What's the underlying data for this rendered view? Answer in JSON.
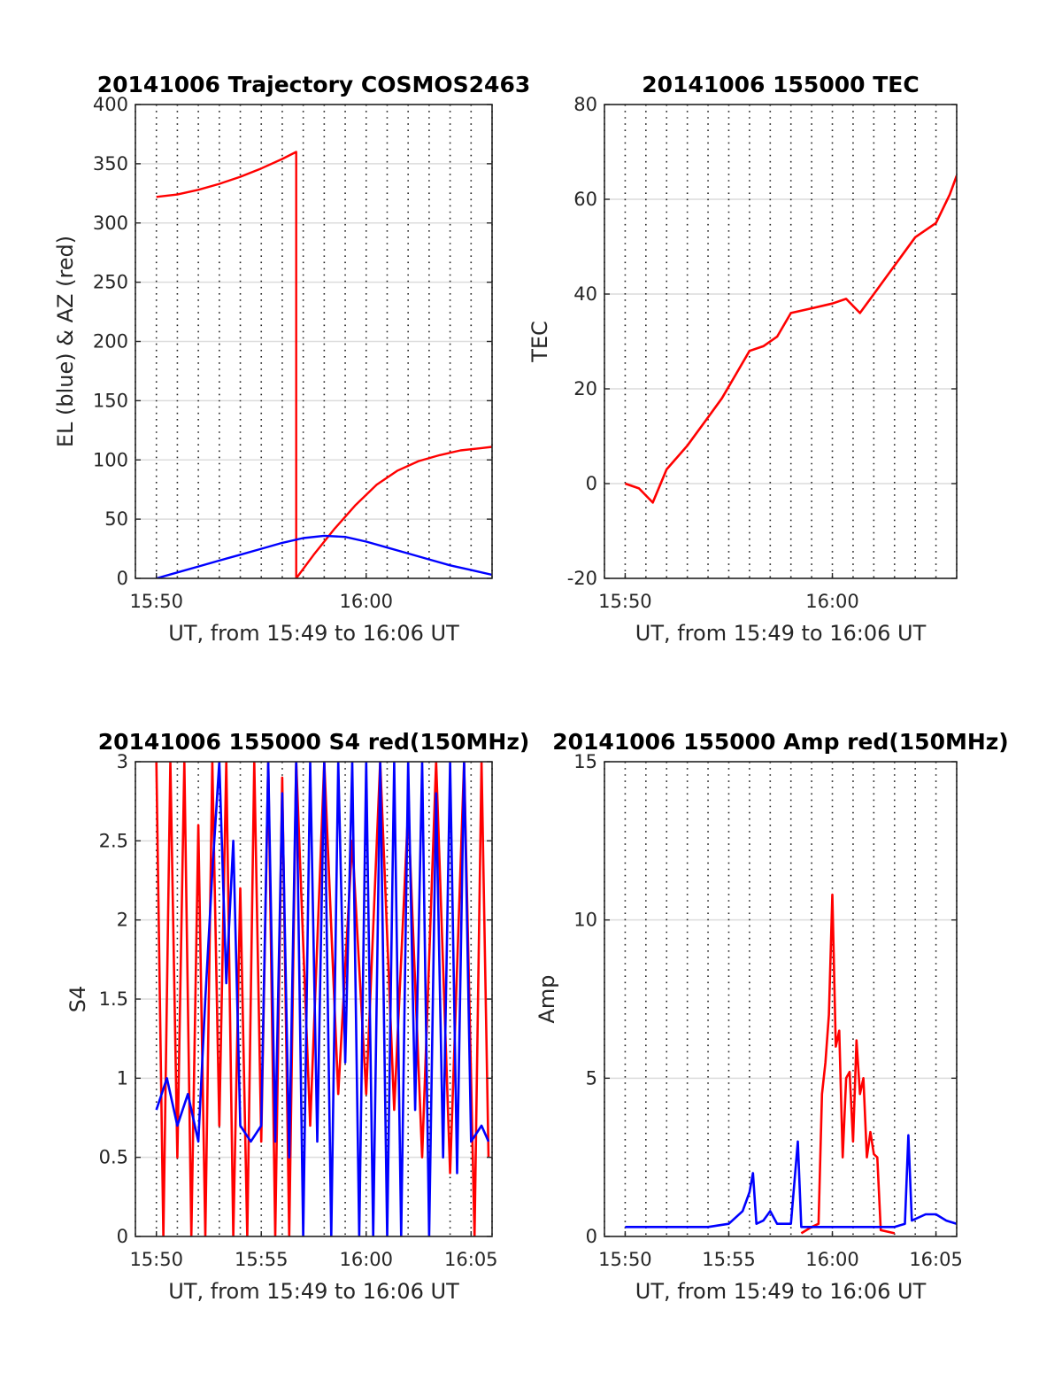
{
  "chart_data": [
    {
      "id": "traj",
      "type": "line",
      "title": "20141006 Trajectory COSMOS2463",
      "xlabel": "UT, from 15:49 to 16:06 UT",
      "ylabel": "EL (blue) & AZ (red)",
      "xlim": [
        "15:49",
        "16:06"
      ],
      "ylim": [
        0,
        400
      ],
      "xticks": [
        "15:50",
        "16:00"
      ],
      "yticks": [
        0,
        50,
        100,
        150,
        200,
        250,
        300,
        350,
        400
      ],
      "grid": true,
      "series": [
        {
          "color": "#ff0000",
          "points": [
            [
              "15:50:00",
              322
            ],
            [
              "15:51:00",
              324
            ],
            [
              "15:52:00",
              328
            ],
            [
              "15:53:00",
              333
            ],
            [
              "15:54:00",
              339
            ],
            [
              "15:55:00",
              346
            ],
            [
              "15:56:00",
              354
            ],
            [
              "15:56:40",
              360
            ],
            [
              "15:56:40",
              0
            ],
            [
              "15:57:30",
              20
            ],
            [
              "15:58:30",
              42
            ],
            [
              "15:59:30",
              62
            ],
            [
              "16:00:30",
              79
            ],
            [
              "16:01:30",
              91
            ],
            [
              "16:02:30",
              99
            ],
            [
              "16:03:30",
              104
            ],
            [
              "16:04:30",
              108
            ],
            [
              "16:05:30",
              110
            ],
            [
              "16:06:00",
              111
            ]
          ]
        },
        {
          "color": "#0000ff",
          "points": [
            [
              "15:50:00",
              0
            ],
            [
              "15:51:00",
              5
            ],
            [
              "15:52:00",
              10
            ],
            [
              "15:53:00",
              15
            ],
            [
              "15:54:00",
              20
            ],
            [
              "15:55:00",
              25
            ],
            [
              "15:56:00",
              30
            ],
            [
              "15:57:00",
              34
            ],
            [
              "15:58:00",
              36
            ],
            [
              "15:59:00",
              35
            ],
            [
              "16:00:00",
              31
            ],
            [
              "16:01:00",
              26
            ],
            [
              "16:02:00",
              21
            ],
            [
              "16:03:00",
              16
            ],
            [
              "16:04:00",
              11
            ],
            [
              "16:05:00",
              7
            ],
            [
              "16:06:00",
              3
            ]
          ]
        }
      ]
    },
    {
      "id": "tec",
      "type": "line",
      "title": "20141006 155000 TEC",
      "xlabel": "UT, from 15:49 to 16:06 UT",
      "ylabel": "TEC",
      "xlim": [
        "15:49",
        "16:06"
      ],
      "ylim": [
        -20,
        80
      ],
      "xticks": [
        "15:50",
        "16:00"
      ],
      "yticks": [
        -20,
        0,
        20,
        40,
        60,
        80
      ],
      "grid": true,
      "series": [
        {
          "color": "#ff0000",
          "points": [
            [
              "15:50:00",
              0
            ],
            [
              "15:50:40",
              -1
            ],
            [
              "15:51:20",
              -4
            ],
            [
              "15:52:00",
              3
            ],
            [
              "15:53:00",
              8
            ],
            [
              "15:54:00",
              14
            ],
            [
              "15:54:40",
              18
            ],
            [
              "15:55:20",
              23
            ],
            [
              "15:56:00",
              28
            ],
            [
              "15:56:40",
              29
            ],
            [
              "15:57:20",
              31
            ],
            [
              "15:58:00",
              36
            ],
            [
              "15:59:00",
              37
            ],
            [
              "16:00:00",
              38
            ],
            [
              "16:00:40",
              39
            ],
            [
              "16:01:20",
              36
            ],
            [
              "16:02:00",
              40
            ],
            [
              "16:03:00",
              46
            ],
            [
              "16:04:00",
              52
            ],
            [
              "16:05:00",
              55
            ],
            [
              "16:05:40",
              61
            ],
            [
              "16:06:00",
              65
            ]
          ]
        }
      ]
    },
    {
      "id": "s4",
      "type": "line",
      "title": "20141006 155000 S4 red(150MHz)",
      "xlabel": "UT, from 15:49 to 16:06 UT",
      "ylabel": "S4",
      "xlim": [
        "15:49",
        "16:06"
      ],
      "ylim": [
        0,
        3
      ],
      "xticks": [
        "15:50",
        "15:55",
        "16:00",
        "16:05"
      ],
      "yticks": [
        "0",
        "0.5",
        "1",
        "1.5",
        "2",
        "2.5",
        "3"
      ],
      "grid": true,
      "series": [
        {
          "color": "#ff0000",
          "points": [
            [
              "15:50:00",
              3
            ],
            [
              "15:50:20",
              0
            ],
            [
              "15:50:40",
              3
            ],
            [
              "15:51:00",
              0.5
            ],
            [
              "15:51:20",
              3
            ],
            [
              "15:51:40",
              0
            ],
            [
              "15:52:00",
              2.6
            ],
            [
              "15:52:20",
              0
            ],
            [
              "15:52:40",
              3
            ],
            [
              "15:53:00",
              0.7
            ],
            [
              "15:53:20",
              3
            ],
            [
              "15:53:40",
              0
            ],
            [
              "15:54:00",
              2.2
            ],
            [
              "15:54:20",
              0
            ],
            [
              "15:54:40",
              3
            ],
            [
              "15:55:00",
              0.6
            ],
            [
              "15:55:20",
              3
            ],
            [
              "15:55:40",
              0
            ],
            [
              "15:56:00",
              2.9
            ],
            [
              "15:56:20",
              0
            ],
            [
              "15:56:40",
              3
            ],
            [
              "15:57:20",
              0.7
            ],
            [
              "15:58:00",
              3
            ],
            [
              "15:58:40",
              0.9
            ],
            [
              "15:59:20",
              2.5
            ],
            [
              "16:00:00",
              0.9
            ],
            [
              "16:00:40",
              3
            ],
            [
              "16:01:20",
              0.8
            ],
            [
              "16:02:00",
              2.7
            ],
            [
              "16:02:40",
              0.5
            ],
            [
              "16:03:20",
              3
            ],
            [
              "16:04:00",
              0.4
            ],
            [
              "16:04:40",
              3
            ],
            [
              "16:05:10",
              0
            ],
            [
              "16:05:30",
              3
            ],
            [
              "16:05:50",
              0.5
            ]
          ]
        },
        {
          "color": "#0000ff",
          "points": [
            [
              "15:50:00",
              0.8
            ],
            [
              "15:50:30",
              1
            ],
            [
              "15:51:00",
              0.7
            ],
            [
              "15:51:30",
              0.9
            ],
            [
              "15:52:00",
              0.6
            ],
            [
              "15:52:20",
              1.5
            ],
            [
              "15:52:40",
              2.3
            ],
            [
              "15:53:00",
              3
            ],
            [
              "15:53:20",
              1.6
            ],
            [
              "15:53:40",
              2.5
            ],
            [
              "15:54:00",
              0.7
            ],
            [
              "15:54:30",
              0.6
            ],
            [
              "15:55:00",
              0.7
            ],
            [
              "15:55:20",
              3
            ],
            [
              "15:55:40",
              0.6
            ],
            [
              "15:56:00",
              2.8
            ],
            [
              "15:56:20",
              0.5
            ],
            [
              "15:56:40",
              3
            ],
            [
              "15:57:00",
              0
            ],
            [
              "15:57:20",
              3
            ],
            [
              "15:57:40",
              0.6
            ],
            [
              "15:58:00",
              3
            ],
            [
              "15:58:20",
              0
            ],
            [
              "15:58:40",
              3
            ],
            [
              "15:59:00",
              1.1
            ],
            [
              "15:59:20",
              3
            ],
            [
              "15:59:40",
              0
            ],
            [
              "16:00:00",
              3
            ],
            [
              "16:00:20",
              0
            ],
            [
              "16:00:40",
              3
            ],
            [
              "16:01:00",
              0
            ],
            [
              "16:01:20",
              3
            ],
            [
              "16:01:40",
              0
            ],
            [
              "16:02:00",
              3
            ],
            [
              "16:02:20",
              0.8
            ],
            [
              "16:02:40",
              3
            ],
            [
              "16:03:00",
              0
            ],
            [
              "16:03:20",
              2.8
            ],
            [
              "16:03:40",
              0.5
            ],
            [
              "16:04:00",
              3
            ],
            [
              "16:04:20",
              0.4
            ],
            [
              "16:04:40",
              3
            ],
            [
              "16:05:00",
              0.6
            ],
            [
              "16:05:30",
              0.7
            ],
            [
              "16:05:50",
              0.6
            ]
          ]
        }
      ]
    },
    {
      "id": "amp",
      "type": "line",
      "title": "20141006 155000 Amp red(150MHz)",
      "xlabel": "UT, from 15:49 to 16:06 UT",
      "ylabel": "Amp",
      "xlim": [
        "15:49",
        "16:06"
      ],
      "ylim": [
        0,
        15
      ],
      "xticks": [
        "15:50",
        "15:55",
        "16:00",
        "16:05"
      ],
      "yticks": [
        0,
        5,
        10,
        15
      ],
      "grid": true,
      "series": [
        {
          "color": "#ff0000",
          "points": [
            [
              "15:58:30",
              0.1
            ],
            [
              "15:59:00",
              0.3
            ],
            [
              "15:59:20",
              0.4
            ],
            [
              "15:59:30",
              4.5
            ],
            [
              "15:59:40",
              5.5
            ],
            [
              "15:59:50",
              7
            ],
            [
              "16:00:00",
              10.8
            ],
            [
              "16:00:10",
              6
            ],
            [
              "16:00:20",
              6.5
            ],
            [
              "16:00:30",
              2.5
            ],
            [
              "16:00:40",
              5
            ],
            [
              "16:00:50",
              5.2
            ],
            [
              "16:01:00",
              3
            ],
            [
              "16:01:10",
              6.2
            ],
            [
              "16:01:20",
              4.5
            ],
            [
              "16:01:30",
              5
            ],
            [
              "16:01:40",
              2.5
            ],
            [
              "16:01:50",
              3.3
            ],
            [
              "16:02:00",
              2.6
            ],
            [
              "16:02:10",
              2.5
            ],
            [
              "16:02:20",
              0.2
            ],
            [
              "16:03:00",
              0.1
            ]
          ]
        },
        {
          "color": "#0000ff",
          "points": [
            [
              "15:50:00",
              0.3
            ],
            [
              "15:51:00",
              0.3
            ],
            [
              "15:52:00",
              0.3
            ],
            [
              "15:53:00",
              0.3
            ],
            [
              "15:54:00",
              0.3
            ],
            [
              "15:55:00",
              0.4
            ],
            [
              "15:55:20",
              0.6
            ],
            [
              "15:55:40",
              0.8
            ],
            [
              "15:56:00",
              1.4
            ],
            [
              "15:56:10",
              2
            ],
            [
              "15:56:20",
              0.4
            ],
            [
              "15:56:40",
              0.5
            ],
            [
              "15:57:00",
              0.8
            ],
            [
              "15:57:20",
              0.4
            ],
            [
              "15:58:00",
              0.4
            ],
            [
              "15:58:20",
              3
            ],
            [
              "15:58:30",
              0.3
            ],
            [
              "15:59:00",
              0.3
            ],
            [
              "16:00:00",
              0.3
            ],
            [
              "16:01:00",
              0.3
            ],
            [
              "16:02:00",
              0.3
            ],
            [
              "16:03:00",
              0.3
            ],
            [
              "16:03:30",
              0.4
            ],
            [
              "16:03:40",
              3.2
            ],
            [
              "16:03:50",
              0.5
            ],
            [
              "16:04:30",
              0.7
            ],
            [
              "16:05:00",
              0.7
            ],
            [
              "16:05:30",
              0.5
            ],
            [
              "16:06:00",
              0.4
            ]
          ]
        }
      ]
    }
  ]
}
